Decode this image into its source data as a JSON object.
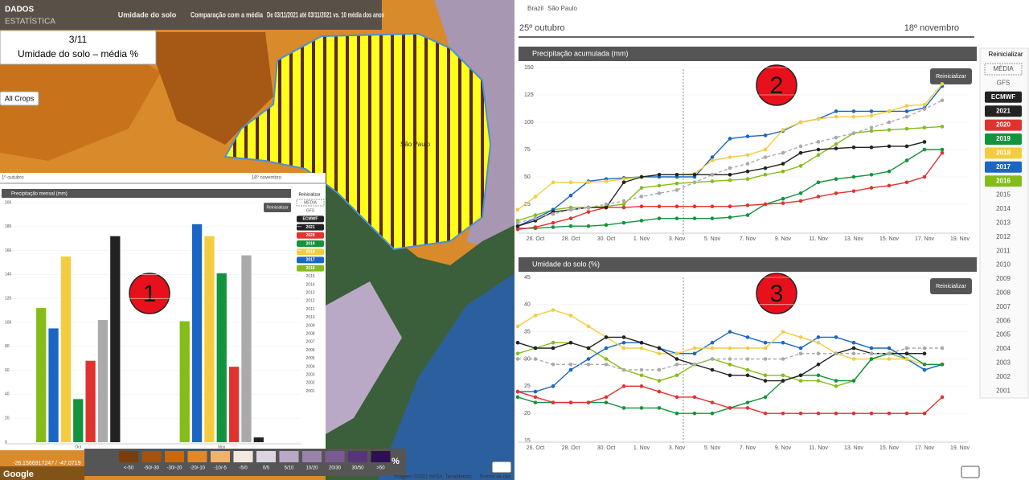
{
  "header": {
    "brand_1": "DADOS",
    "brand_2": "ESTATÍSTICA",
    "tabs": [
      "Umidade do solo",
      "Comparação com a média",
      "De 03/11/2021 até 03/11/2021 vs. 10 média dos anos"
    ]
  },
  "map": {
    "info_date": "3/11",
    "info_label": "Umidade do solo – média %",
    "crops_button": "All Crops",
    "place_label": "São Paulo",
    "coordinates": "-28.1566917247 / -47.0719",
    "attribution": "Imagens ©2021 NASA, TerraMetrics",
    "terms": "Termos de uso",
    "google": "Google"
  },
  "legend": {
    "classes": [
      {
        "label": "<-50",
        "color": "#7b3d0c"
      },
      {
        "label": "-50/-30",
        "color": "#a4520f"
      },
      {
        "label": "-30/-20",
        "color": "#c8690e"
      },
      {
        "label": "-20/-10",
        "color": "#df8a25"
      },
      {
        "label": "-10/-5",
        "color": "#f2b269"
      },
      {
        "label": "-5/0",
        "color": "#f1e9de"
      },
      {
        "label": "0/5",
        "color": "#dcd5e0"
      },
      {
        "label": "5/10",
        "color": "#b9a9c7"
      },
      {
        "label": "10/20",
        "color": "#9a82ab"
      },
      {
        "label": "20/30",
        "color": "#7a5b93"
      },
      {
        "label": "30/50",
        "color": "#56357a"
      },
      {
        "label": ">50",
        "color": "#2e0f55"
      }
    ],
    "unit": "%"
  },
  "breadcrumb": [
    "Brazil",
    "São Paulo"
  ],
  "date_range": {
    "start": "25º outubro",
    "end": "18º novembro"
  },
  "mini_date_range": {
    "start": "1º outubro",
    "end": "18º novembro"
  },
  "reset_label": "Reinicializar",
  "selector": {
    "items": [
      {
        "label": "MÉDIA"
      },
      {
        "label": "GFS"
      },
      {
        "label": "ECMWF",
        "color": "#222222"
      },
      {
        "label": "2021",
        "color": "#222222"
      },
      {
        "label": "2020",
        "color": "#e0332f"
      },
      {
        "label": "2019",
        "color": "#12933d"
      },
      {
        "label": "2018",
        "color": "#f3cd3f"
      },
      {
        "label": "2017",
        "color": "#1a66c4"
      },
      {
        "label": "2016",
        "color": "#84bd1a"
      },
      {
        "label": "2015"
      },
      {
        "label": "2014"
      },
      {
        "label": "2013"
      },
      {
        "label": "2012"
      },
      {
        "label": "2011"
      },
      {
        "label": "2010"
      },
      {
        "label": "2009"
      },
      {
        "label": "2008"
      },
      {
        "label": "2007"
      },
      {
        "label": "2006"
      },
      {
        "label": "2005"
      },
      {
        "label": "2004"
      },
      {
        "label": "2003"
      },
      {
        "label": "2002"
      },
      {
        "label": "2001"
      }
    ]
  },
  "annotations": [
    "1",
    "2",
    "3"
  ],
  "chart_data": [
    {
      "type": "bar",
      "title": "Precipitação mensal (mm)",
      "categories": [
        "Oct",
        "Nov"
      ],
      "ylim": [
        0,
        200
      ],
      "yticks": [
        0,
        20,
        40,
        60,
        80,
        100,
        120,
        140,
        160,
        180,
        200
      ],
      "series": [
        {
          "name": "2016",
          "color": "#84bd1a",
          "values": [
            112,
            101
          ]
        },
        {
          "name": "2017",
          "color": "#1a66c4",
          "values": [
            95,
            182
          ]
        },
        {
          "name": "2018",
          "color": "#f3cd3f",
          "values": [
            155,
            172
          ]
        },
        {
          "name": "2019",
          "color": "#12933d",
          "values": [
            36,
            141
          ]
        },
        {
          "name": "2020",
          "color": "#e0332f",
          "values": [
            68,
            63
          ]
        },
        {
          "name": "MÉDIA",
          "color": "#aaaaaa",
          "values": [
            102,
            156
          ]
        },
        {
          "name": "2021",
          "color": "#222222",
          "values": [
            172,
            4
          ]
        }
      ]
    },
    {
      "type": "line",
      "title": "Precipitação acumulada (mm)",
      "categories": [
        null,
        "26. Oct",
        null,
        "28. Oct",
        null,
        "30. Oct",
        null,
        "1. Nov",
        null,
        "3. Nov",
        null,
        "5. Nov",
        null,
        "7. Nov",
        null,
        "9. Nov",
        null,
        "11. Nov",
        null,
        "13. Nov",
        null,
        "15. Nov",
        null,
        "17. Nov",
        null,
        "19. Nov"
      ],
      "ylim": [
        0,
        150
      ],
      "yticks": [
        25,
        50,
        75,
        100,
        125,
        150
      ],
      "series": [
        {
          "name": "2016",
          "color": "#84bd1a",
          "values": [
            10,
            15,
            20,
            22,
            22,
            23,
            25,
            40,
            42,
            44,
            45,
            46,
            47,
            48,
            52,
            55,
            60,
            70,
            80,
            90,
            92,
            93,
            94,
            95,
            96,
            null
          ]
        },
        {
          "name": "2017",
          "color": "#1a66c4",
          "values": [
            5,
            12,
            20,
            33,
            46,
            48,
            49,
            50,
            50,
            50,
            50,
            68,
            85,
            87,
            88,
            92,
            100,
            103,
            110,
            110,
            110,
            110,
            110,
            113,
            133,
            null
          ]
        },
        {
          "name": "2018",
          "color": "#f3cd3f",
          "values": [
            20,
            32,
            45,
            45,
            45,
            46,
            48,
            50,
            52,
            52,
            53,
            65,
            68,
            70,
            75,
            93,
            100,
            103,
            105,
            105,
            106,
            110,
            115,
            116,
            135,
            null
          ]
        },
        {
          "name": "2019",
          "color": "#12933d",
          "values": [
            3,
            3,
            4,
            5,
            5,
            6,
            8,
            10,
            12,
            12,
            12,
            12,
            13,
            15,
            25,
            30,
            35,
            45,
            48,
            50,
            52,
            55,
            65,
            75,
            75,
            null
          ]
        },
        {
          "name": "2020",
          "color": "#e0332f",
          "values": [
            2,
            4,
            8,
            12,
            18,
            22,
            22,
            23,
            23,
            23,
            23,
            23,
            23,
            24,
            25,
            26,
            28,
            32,
            35,
            37,
            40,
            42,
            45,
            50,
            72,
            null
          ]
        },
        {
          "name": "2021",
          "color": "#222222",
          "values": [
            5,
            10,
            18,
            20,
            22,
            22,
            45,
            50,
            52,
            52,
            52,
            52,
            52,
            55,
            58,
            62,
            72,
            75,
            76,
            77,
            77,
            78,
            78,
            82,
            null,
            null
          ]
        },
        {
          "name": "MÉDIA",
          "color": "#aaaaaa",
          "style": "dashed",
          "values": [
            8,
            12,
            16,
            20,
            22,
            25,
            28,
            32,
            35,
            38,
            45,
            52,
            58,
            62,
            68,
            72,
            78,
            82,
            86,
            90,
            95,
            100,
            105,
            112,
            120,
            null
          ]
        }
      ]
    },
    {
      "type": "line",
      "title": "Umidade do solo (%)",
      "categories": [
        null,
        "26. Oct",
        null,
        "28. Oct",
        null,
        "30. Oct",
        null,
        "1. Nov",
        null,
        "3. Nov",
        null,
        "5. Nov",
        null,
        "7. Nov",
        null,
        "9. Nov",
        null,
        "11. Nov",
        null,
        "13. Nov",
        null,
        "15. Nov",
        null,
        "17. Nov",
        null,
        "19. Nov"
      ],
      "ylim": [
        15,
        45
      ],
      "yticks": [
        15,
        20,
        25,
        30,
        35,
        40,
        45
      ],
      "series": [
        {
          "name": "2016",
          "color": "#84bd1a",
          "values": [
            31,
            32,
            33,
            33,
            32,
            30,
            28,
            27,
            26,
            27,
            29,
            30,
            29,
            28,
            27,
            27,
            26,
            26,
            25,
            26,
            30,
            31,
            30,
            28,
            29,
            null
          ]
        },
        {
          "name": "2017",
          "color": "#1a66c4",
          "values": [
            24,
            24,
            25,
            28,
            30,
            32,
            33,
            33,
            32,
            31,
            31,
            33,
            35,
            34,
            33,
            33,
            32,
            34,
            34,
            33,
            32,
            32,
            30,
            28,
            29,
            null
          ]
        },
        {
          "name": "2018",
          "color": "#f3cd3f",
          "values": [
            36,
            38,
            39,
            38,
            36,
            34,
            32,
            32,
            31,
            31,
            32,
            32,
            32,
            32,
            32,
            35,
            34,
            33,
            31,
            30,
            30,
            30,
            30,
            29,
            29,
            null
          ]
        },
        {
          "name": "2019",
          "color": "#12933d",
          "values": [
            23,
            22,
            22,
            22,
            22,
            22,
            21,
            21,
            21,
            20,
            20,
            20,
            21,
            22,
            23,
            26,
            27,
            27,
            26,
            26,
            30,
            31,
            31,
            29,
            29,
            null
          ]
        },
        {
          "name": "2020",
          "color": "#e0332f",
          "values": [
            24,
            23,
            22,
            22,
            22,
            23,
            25,
            25,
            24,
            23,
            23,
            22,
            21,
            21,
            20,
            20,
            20,
            20,
            20,
            20,
            20,
            20,
            20,
            20,
            23,
            null
          ]
        },
        {
          "name": "2021",
          "color": "#222222",
          "values": [
            33,
            32,
            32,
            33,
            32,
            34,
            34,
            33,
            32,
            30,
            29,
            28,
            27,
            27,
            26,
            26,
            27,
            29,
            31,
            32,
            31,
            31,
            31,
            31,
            null,
            null
          ]
        },
        {
          "name": "MÉDIA",
          "color": "#aaaaaa",
          "style": "dashed",
          "values": [
            30,
            30,
            29,
            29,
            29,
            29,
            28,
            28,
            28,
            29,
            29,
            30,
            30,
            30,
            30,
            30,
            31,
            31,
            31,
            31,
            31,
            31,
            32,
            32,
            32,
            null
          ]
        }
      ]
    }
  ]
}
